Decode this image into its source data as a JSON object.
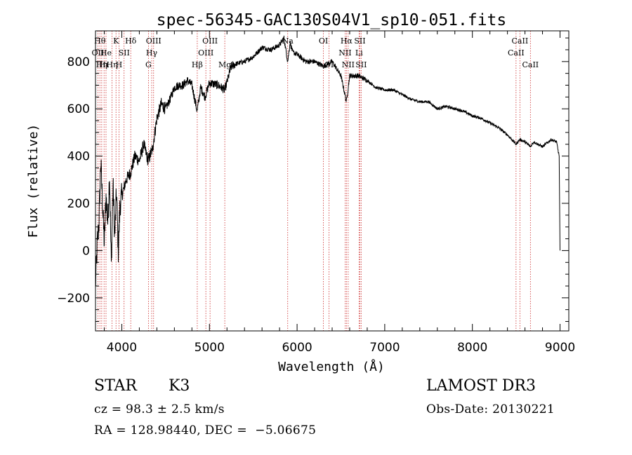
{
  "chart_data": {
    "type": "line",
    "title": "spec-56345-GAC130S04V1_sp10-051.fits",
    "xlabel": "Wavelength (Å)",
    "ylabel": "Flux (relative)",
    "xlim": [
      3700,
      9100
    ],
    "ylim": [
      -340,
      930
    ],
    "xticks": [
      4000,
      5000,
      6000,
      7000,
      8000,
      9000
    ],
    "xtick_labels": [
      "4000",
      "5000",
      "6000",
      "7000",
      "8000",
      "9000"
    ],
    "yticks": [
      -200,
      0,
      200,
      400,
      600,
      800
    ],
    "ytick_labels": [
      "−200",
      "0",
      "200",
      "400",
      "600",
      "800"
    ],
    "line_color": "#000000",
    "marker_color": "#cc2a2a",
    "series": [
      {
        "name": "flux",
        "x": [
          3700,
          3720,
          3740,
          3760,
          3780,
          3800,
          3820,
          3840,
          3860,
          3880,
          3900,
          3920,
          3940,
          3960,
          3980,
          4000,
          4050,
          4100,
          4150,
          4200,
          4250,
          4300,
          4350,
          4400,
          4450,
          4500,
          4550,
          4600,
          4650,
          4700,
          4750,
          4800,
          4860,
          4900,
          4950,
          5000,
          5100,
          5175,
          5250,
          5300,
          5400,
          5500,
          5600,
          5700,
          5800,
          5850,
          5893,
          5920,
          5950,
          6000,
          6100,
          6200,
          6300,
          6400,
          6500,
          6563,
          6600,
          6700,
          6800,
          6900,
          7000,
          7100,
          7200,
          7300,
          7400,
          7500,
          7600,
          7700,
          7800,
          7900,
          8000,
          8100,
          8200,
          8300,
          8400,
          8498,
          8542,
          8600,
          8662,
          8700,
          8800,
          8900,
          8960,
          8990,
          9000
        ],
        "y": [
          -150,
          30,
          120,
          380,
          200,
          30,
          230,
          120,
          320,
          -60,
          280,
          60,
          250,
          0,
          200,
          230,
          300,
          330,
          400,
          380,
          450,
          380,
          430,
          560,
          620,
          600,
          640,
          690,
          700,
          700,
          720,
          700,
          590,
          690,
          650,
          710,
          700,
          680,
          780,
          790,
          800,
          820,
          860,
          850,
          870,
          900,
          800,
          880,
          840,
          830,
          800,
          800,
          780,
          800,
          740,
          630,
          740,
          740,
          720,
          690,
          680,
          680,
          660,
          640,
          630,
          630,
          600,
          610,
          600,
          590,
          570,
          560,
          540,
          520,
          490,
          450,
          470,
          460,
          440,
          460,
          440,
          470,
          460,
          400,
          0
        ]
      }
    ],
    "line_markers": [
      {
        "wl": 3727,
        "label": "OII",
        "row": 2
      },
      {
        "wl": 3750,
        "label": "Hθ",
        "row": 1
      },
      {
        "wl": 3771,
        "label": "Hη",
        "row": 3
      },
      {
        "wl": 3798,
        "label": "Hι",
        "row": 3
      },
      {
        "wl": 3820,
        "label": "He",
        "row": 2
      },
      {
        "wl": 3889,
        "label": "Hη",
        "row": 3
      },
      {
        "wl": 3934,
        "label": "K",
        "row": 1
      },
      {
        "wl": 3968,
        "label": "H",
        "row": 3
      },
      {
        "wl": 4026,
        "label": "SII",
        "row": 2
      },
      {
        "wl": 4102,
        "label": "Hδ",
        "row": 1
      },
      {
        "wl": 4304,
        "label": "G",
        "row": 3
      },
      {
        "wl": 4341,
        "label": "Hγ",
        "row": 2
      },
      {
        "wl": 4363,
        "label": "OIII",
        "row": 1
      },
      {
        "wl": 4861,
        "label": "Hβ",
        "row": 3
      },
      {
        "wl": 4959,
        "label": "OIII",
        "row": 2
      },
      {
        "wl": 5007,
        "label": "OIII",
        "row": 1
      },
      {
        "wl": 5175,
        "label": "Mg",
        "row": 3
      },
      {
        "wl": 5893,
        "label": "Na",
        "row": 1
      },
      {
        "wl": 6300,
        "label": "OI",
        "row": 1
      },
      {
        "wl": 6364,
        "label": "OI",
        "row": 3
      },
      {
        "wl": 6548,
        "label": "NII",
        "row": 2
      },
      {
        "wl": 6563,
        "label": "Hα",
        "row": 1
      },
      {
        "wl": 6583,
        "label": "NII",
        "row": 3
      },
      {
        "wl": 6707,
        "label": "Li",
        "row": 2
      },
      {
        "wl": 6716,
        "label": "SII",
        "row": 1
      },
      {
        "wl": 6731,
        "label": "SII",
        "row": 3
      },
      {
        "wl": 8498,
        "label": "CaII",
        "row": 2
      },
      {
        "wl": 8542,
        "label": "CaII",
        "row": 1
      },
      {
        "wl": 8662,
        "label": "CaII",
        "row": 3
      }
    ]
  },
  "info": {
    "object_class": "STAR",
    "subclass": "K3",
    "survey": "LAMOST DR3",
    "redshift": "cz = 98.3 ± 2.5 km/s",
    "obs_date": "Obs-Date: 20130221",
    "coords": "RA = 128.98440, DEC =  −5.06675"
  }
}
